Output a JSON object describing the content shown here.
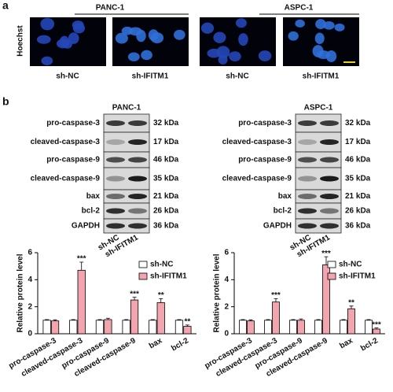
{
  "panel_a": {
    "label": "a",
    "cell_lines": [
      "PANC-1",
      "ASPC-1"
    ],
    "stain": "Hoechst",
    "groups": [
      "sh-NC",
      "sh-IFITM1",
      "sh-NC",
      "sh-IFITM1"
    ]
  },
  "panel_b": {
    "label": "b",
    "blots": [
      {
        "title": "PANC-1",
        "proteins": [
          "pro-caspase-3",
          "cleaved-caspase-3",
          "pro-caspase-9",
          "cleaved-caspase-9",
          "bax",
          "bcl-2",
          "GAPDH"
        ],
        "sizes": [
          "32 kDa",
          "17 kDa",
          "46 kDa",
          "35 kDa",
          "21 kDa",
          "26 kDa",
          "36 kDa"
        ],
        "lanes": [
          "sh-NC",
          "sh-IFITM1"
        ]
      },
      {
        "title": "ASPC-1",
        "proteins": [
          "pro-caspase-3",
          "cleaved-caspase-3",
          "pro-caspase-9",
          "cleaved-caspase-9",
          "bax",
          "bcl-2",
          "GAPDH"
        ],
        "sizes": [
          "32 kDa",
          "17 kDa",
          "46 kDa",
          "35 kDa",
          "21 kDa",
          "26 kDa",
          "36 kDa"
        ],
        "lanes": [
          "sh-NC",
          "sh-IFITM1"
        ]
      }
    ]
  },
  "chart_data": [
    {
      "type": "bar",
      "ylabel": "Relative protein level",
      "categories": [
        "pro-caspase-3",
        "cleaved-caspase-3",
        "pro-caspase-9",
        "cleaved-caspase-9",
        "bax",
        "bcl-2"
      ],
      "series": [
        {
          "name": "sh-NC",
          "color": "#ffffff",
          "values": [
            1,
            1,
            1,
            1,
            1,
            1
          ],
          "errors": [
            0.05,
            0.05,
            0.05,
            0.05,
            0.05,
            0.05
          ],
          "annotations": [
            null,
            null,
            null,
            null,
            null,
            null
          ]
        },
        {
          "name": "sh-IFITM1",
          "color": "#f2a5ae",
          "values": [
            0.95,
            4.7,
            1.05,
            2.5,
            2.3,
            0.55
          ],
          "errors": [
            0.08,
            0.6,
            0.1,
            0.2,
            0.3,
            0.1
          ],
          "annotations": [
            null,
            "***",
            null,
            "***",
            "**",
            "**"
          ]
        }
      ],
      "ylim": [
        0,
        6
      ],
      "yticks": [
        0,
        2,
        4,
        6
      ],
      "legend": "upper right"
    },
    {
      "type": "bar",
      "ylabel": "Relative protein level",
      "categories": [
        "pro-caspase-3",
        "cleaved-caspase-3",
        "pro-caspase-9",
        "cleaved-caspase-9",
        "bax",
        "bcl-2"
      ],
      "series": [
        {
          "name": "sh-NC",
          "color": "#ffffff",
          "values": [
            1,
            1,
            1,
            1,
            1,
            1
          ],
          "errors": [
            0.05,
            0.05,
            0.05,
            0.05,
            0.05,
            0.05
          ],
          "annotations": [
            null,
            null,
            null,
            null,
            null,
            null
          ]
        },
        {
          "name": "sh-IFITM1",
          "color": "#f2a5ae",
          "values": [
            0.95,
            2.35,
            1.0,
            5.1,
            1.85,
            0.35
          ],
          "errors": [
            0.08,
            0.25,
            0.1,
            0.6,
            0.2,
            0.08
          ],
          "annotations": [
            null,
            "***",
            null,
            "***",
            "**",
            "***"
          ]
        }
      ],
      "ylim": [
        0,
        6
      ],
      "yticks": [
        0,
        2,
        4,
        6
      ],
      "legend": "upper right"
    }
  ]
}
